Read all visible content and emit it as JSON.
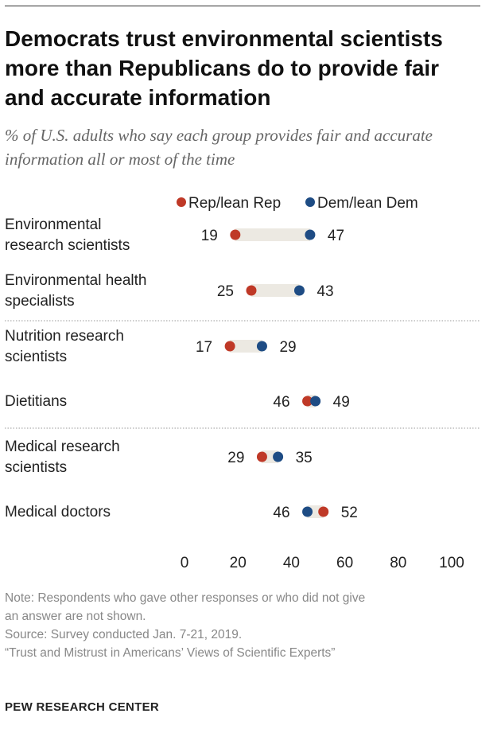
{
  "chart_data": {
    "type": "dot",
    "title": "Democrats trust environmental scientists more than Republicans do to provide fair and accurate information",
    "subtitle": "% of U.S. adults who say each group provides fair and accurate information all or most of the time",
    "legend": [
      "Rep/lean Rep",
      "Dem/lean Dem"
    ],
    "categories": [
      [
        "Environmental",
        "research scientists"
      ],
      [
        "Environmental health",
        "specialists"
      ],
      [
        "Nutrition research",
        "scientists"
      ],
      [
        "Dietitians"
      ],
      [
        "Medical research",
        "scientists"
      ],
      [
        "Medical doctors"
      ]
    ],
    "series": [
      {
        "name": "Rep/lean Rep",
        "color": "#BF3927",
        "values": [
          19,
          25,
          17,
          46,
          29,
          52
        ]
      },
      {
        "name": "Dem/lean Dem",
        "color": "#1E4C84",
        "values": [
          47,
          43,
          29,
          49,
          35,
          46
        ]
      }
    ],
    "xlim": [
      0,
      100
    ],
    "xticks": [
      0,
      20,
      40,
      60,
      80,
      100
    ],
    "bar_color": "#ECE9E2"
  },
  "notes": [
    "Note: Respondents who gave other responses or who did not give",
    "an answer are not shown.",
    "Source: Survey conducted Jan. 7-21, 2019.",
    "“Trust and Mistrust in Americans’ Views of Scientific Experts”"
  ],
  "brand": "PEW RESEARCH CENTER"
}
